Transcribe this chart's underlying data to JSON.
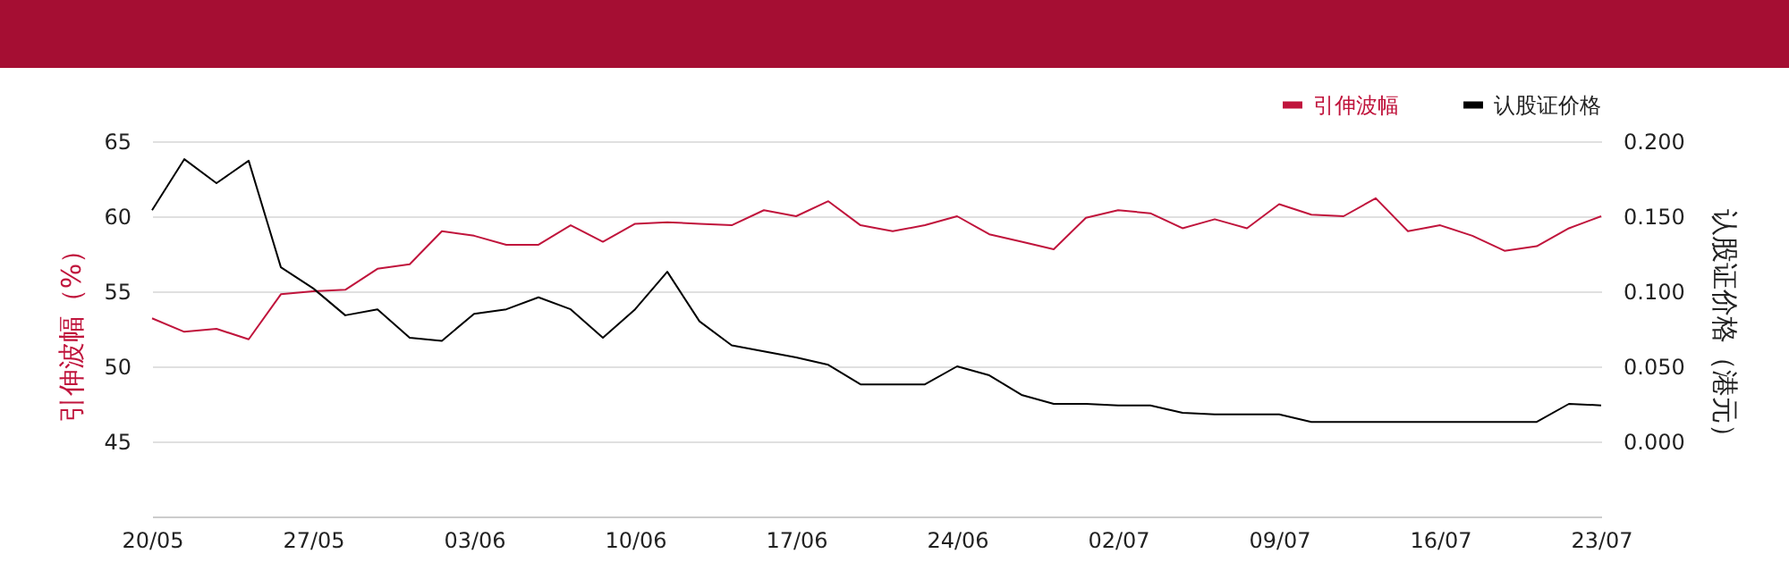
{
  "chart_data": {
    "type": "line",
    "ylabel": "引伸波幅（%）",
    "y2label": "认股证价格（港元）",
    "categories": [
      "20/05",
      null,
      null,
      null,
      null,
      "27/05",
      null,
      null,
      null,
      null,
      "03/06",
      null,
      null,
      null,
      null,
      "10/06",
      null,
      null,
      null,
      null,
      "17/06",
      null,
      null,
      null,
      null,
      "24/06",
      null,
      null,
      null,
      null,
      "02/07",
      null,
      null,
      null,
      null,
      "09/07",
      null,
      null,
      null,
      null,
      "16/07",
      null,
      null,
      null,
      null,
      "23/07"
    ],
    "series": [
      {
        "name": "引伸波幅",
        "color": "#c0143c",
        "values": [
          53.2,
          52.3,
          52.5,
          51.8,
          54.8,
          55.0,
          55.1,
          56.5,
          56.8,
          59.0,
          58.7,
          58.1,
          58.1,
          59.4,
          58.3,
          59.5,
          59.6,
          59.5,
          59.4,
          60.4,
          60.0,
          61.0,
          59.4,
          59.0,
          59.4,
          60.0,
          58.8,
          58.3,
          57.8,
          59.9,
          60.4,
          60.2,
          59.2,
          59.8,
          59.2,
          60.8,
          60.1,
          60.0,
          61.2,
          59.0,
          59.4,
          58.7,
          57.7,
          58.0,
          59.2,
          60.0
        ]
      },
      {
        "name": "认股证价格",
        "color": "#000000",
        "axis": "y2",
        "values": [
          0.154,
          0.188,
          0.172,
          0.187,
          0.116,
          0.102,
          0.084,
          0.088,
          0.069,
          0.067,
          0.085,
          0.088,
          0.096,
          0.088,
          0.069,
          0.088,
          0.113,
          0.08,
          0.064,
          0.06,
          0.056,
          0.051,
          0.038,
          0.038,
          0.038,
          0.05,
          0.044,
          0.031,
          0.025,
          0.025,
          0.024,
          0.024,
          0.019,
          0.018,
          0.018,
          0.018,
          0.013,
          0.013,
          0.013,
          0.013,
          0.013,
          0.013,
          0.013,
          0.013,
          0.025,
          0.024
        ]
      }
    ],
    "ylim": [
      40,
      65
    ],
    "yticks": [
      45,
      50,
      55,
      60,
      65
    ],
    "y2lim": [
      -0.05,
      0.2
    ],
    "y2ticks": [
      {
        "value": 0,
        "label": "0.000"
      },
      {
        "value": 0.05,
        "label": "0.050"
      },
      {
        "value": 0.1,
        "label": "0.100"
      },
      {
        "value": 0.15,
        "label": "0.150"
      },
      {
        "value": 0.2,
        "label": "0.200"
      }
    ],
    "grid": "y",
    "legend": "top right",
    "marker": "none",
    "line_style": "solid"
  }
}
